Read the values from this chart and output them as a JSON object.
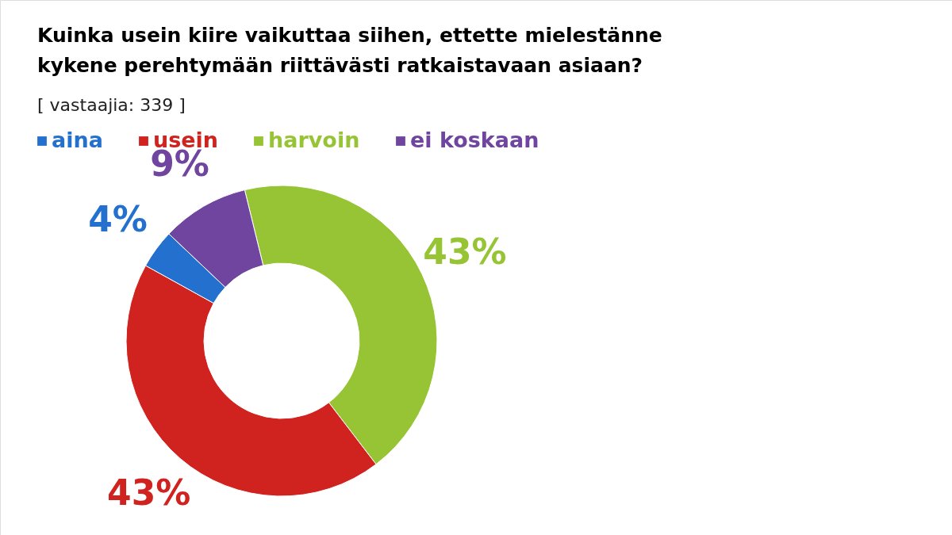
{
  "chart_data": {
    "type": "donut",
    "title": "Kuinka usein kiire vaikuttaa siihen, ettette mielestänne\nkykene perehtymään riittävästi ratkaistavaan asiaan?",
    "subtitle": "[ vastaajia: 339 ]",
    "categories": [
      "harvoin",
      "usein",
      "aina",
      "ei koskaan"
    ],
    "values": [
      43,
      43,
      4,
      9
    ],
    "colors": [
      "#97c435",
      "#d0231f",
      "#2370cf",
      "#7045a0"
    ],
    "value_labels": [
      "43%",
      "43%",
      "4%",
      "9%"
    ],
    "legend": "top left"
  }
}
